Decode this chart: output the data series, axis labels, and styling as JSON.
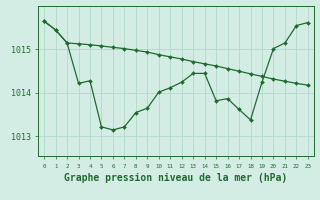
{
  "background_color": "#d4ede4",
  "grid_color": "#b0d9c8",
  "line_color": "#1e6b30",
  "xlabel": "Graphe pression niveau de la mer (hPa)",
  "xlabel_fontsize": 7.0,
  "ylabel_ticks": [
    1013,
    1014,
    1015
  ],
  "xlim": [
    -0.5,
    23.5
  ],
  "ylim": [
    1012.55,
    1016.0
  ],
  "line1": [
    1015.65,
    1015.45,
    1015.15,
    1015.13,
    1015.11,
    1015.08,
    1015.05,
    1015.02,
    1014.98,
    1014.94,
    1014.88,
    1014.83,
    1014.78,
    1014.72,
    1014.67,
    1014.62,
    1014.56,
    1014.5,
    1014.44,
    1014.38,
    1014.32,
    1014.27,
    1014.22,
    1014.18
  ],
  "line2": [
    1015.65,
    1015.45,
    1015.15,
    1014.22,
    1014.28,
    1013.22,
    1013.15,
    1013.22,
    1013.55,
    1013.65,
    1014.02,
    1014.12,
    1014.25,
    1014.45,
    1014.45,
    1013.82,
    1013.87,
    1013.62,
    1013.38,
    1014.25,
    1015.02,
    1015.15,
    1015.55,
    1015.62
  ]
}
